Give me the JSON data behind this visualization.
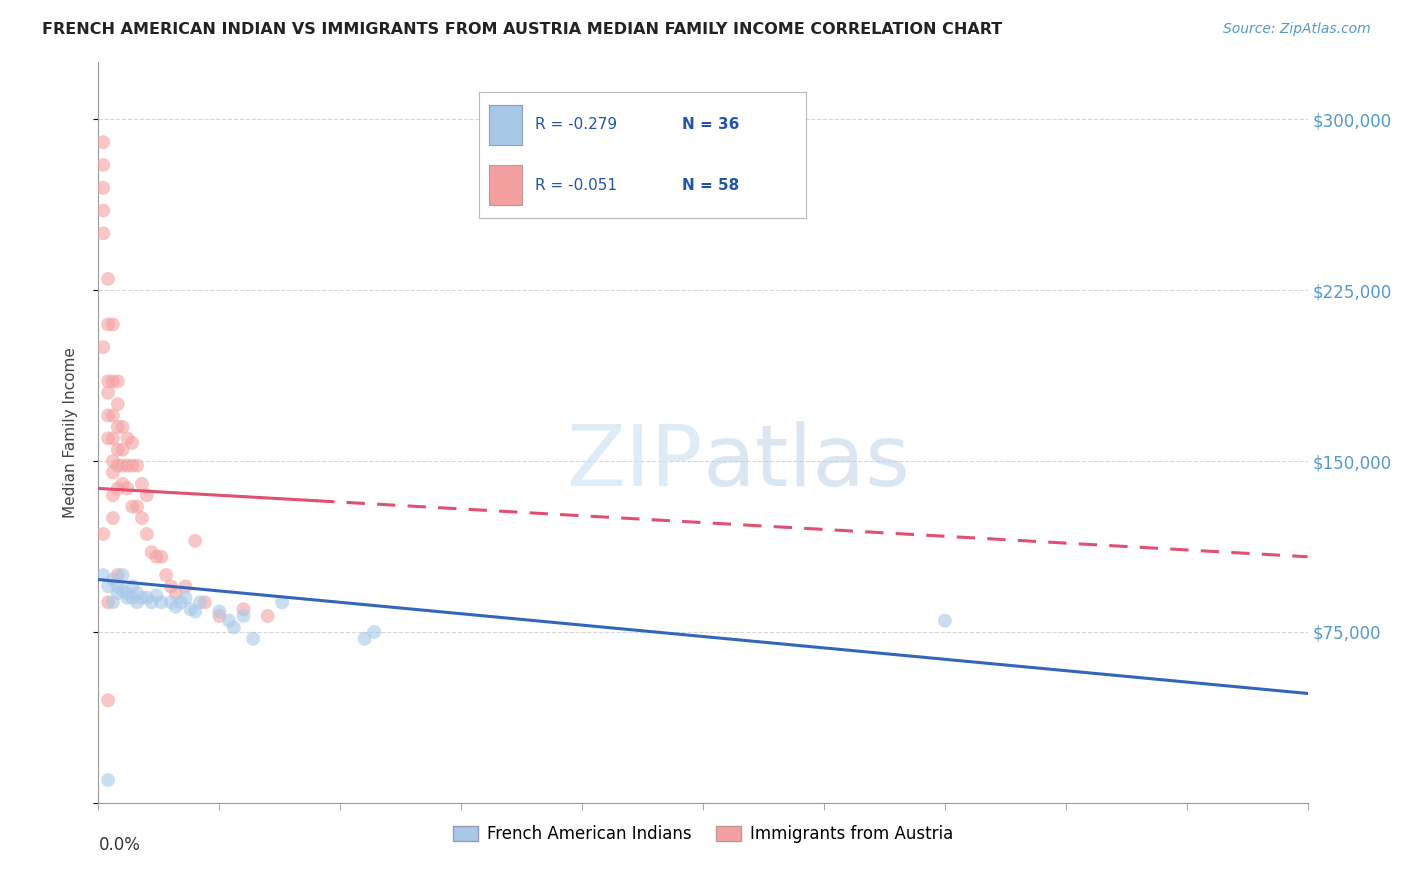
{
  "title": "FRENCH AMERICAN INDIAN VS IMMIGRANTS FROM AUSTRIA MEDIAN FAMILY INCOME CORRELATION CHART",
  "source": "Source: ZipAtlas.com",
  "ylabel": "Median Family Income",
  "xlim": [
    0.0,
    0.25
  ],
  "ylim": [
    0,
    325000
  ],
  "yticks": [
    0,
    75000,
    150000,
    225000,
    300000
  ],
  "ytick_labels": [
    "",
    "$75,000",
    "$150,000",
    "$225,000",
    "$300,000"
  ],
  "background_color": "#ffffff",
  "grid_color": "#cccccc",
  "watermark_zip": "ZIP",
  "watermark_atlas": "atlas",
  "legend_blue_r": "R = -0.279",
  "legend_blue_n": "N = 36",
  "legend_pink_r": "R = -0.051",
  "legend_pink_n": "N = 58",
  "blue_color": "#a8c8e8",
  "pink_color": "#f4a0a0",
  "blue_line_color": "#3366bb",
  "pink_line_color": "#e05070",
  "blue_label": "French American Indians",
  "pink_label": "Immigrants from Austria",
  "blue_x": [
    0.001,
    0.002,
    0.003,
    0.003,
    0.004,
    0.004,
    0.005,
    0.005,
    0.006,
    0.006,
    0.007,
    0.007,
    0.008,
    0.008,
    0.009,
    0.01,
    0.011,
    0.012,
    0.013,
    0.015,
    0.016,
    0.017,
    0.018,
    0.019,
    0.02,
    0.021,
    0.025,
    0.027,
    0.028,
    0.03,
    0.032,
    0.055,
    0.057,
    0.175,
    0.002,
    0.038
  ],
  "blue_y": [
    100000,
    95000,
    98000,
    88000,
    95000,
    92000,
    100000,
    93000,
    92000,
    90000,
    95000,
    90000,
    92000,
    88000,
    90000,
    90000,
    88000,
    91000,
    88000,
    88000,
    86000,
    88000,
    90000,
    85000,
    84000,
    88000,
    84000,
    80000,
    77000,
    82000,
    72000,
    72000,
    75000,
    80000,
    10000,
    88000
  ],
  "pink_x": [
    0.001,
    0.001,
    0.001,
    0.001,
    0.001,
    0.001,
    0.002,
    0.002,
    0.002,
    0.002,
    0.002,
    0.002,
    0.003,
    0.003,
    0.003,
    0.003,
    0.003,
    0.003,
    0.004,
    0.004,
    0.004,
    0.004,
    0.004,
    0.004,
    0.005,
    0.005,
    0.005,
    0.005,
    0.006,
    0.006,
    0.006,
    0.007,
    0.007,
    0.007,
    0.008,
    0.008,
    0.009,
    0.009,
    0.01,
    0.01,
    0.011,
    0.012,
    0.013,
    0.014,
    0.015,
    0.016,
    0.018,
    0.02,
    0.022,
    0.025,
    0.03,
    0.035,
    0.001,
    0.002,
    0.002,
    0.003,
    0.003,
    0.004
  ],
  "pink_y": [
    290000,
    280000,
    270000,
    260000,
    250000,
    200000,
    230000,
    210000,
    185000,
    180000,
    170000,
    160000,
    210000,
    185000,
    170000,
    160000,
    150000,
    145000,
    185000,
    175000,
    165000,
    155000,
    148000,
    138000,
    165000,
    155000,
    148000,
    140000,
    160000,
    148000,
    138000,
    158000,
    148000,
    130000,
    148000,
    130000,
    140000,
    125000,
    135000,
    118000,
    110000,
    108000,
    108000,
    100000,
    95000,
    92000,
    95000,
    115000,
    88000,
    82000,
    85000,
    82000,
    118000,
    45000,
    88000,
    135000,
    125000,
    100000
  ],
  "blue_trend_x0": 0.0,
  "blue_trend_x1": 0.25,
  "blue_trend_y0": 98000,
  "blue_trend_y1": 48000,
  "pink_trend_x0": 0.0,
  "pink_trend_x1": 0.25,
  "pink_trend_y0": 138000,
  "pink_trend_y1": 108000,
  "marker_size": 100,
  "marker_alpha": 0.6,
  "line_width": 2.2
}
